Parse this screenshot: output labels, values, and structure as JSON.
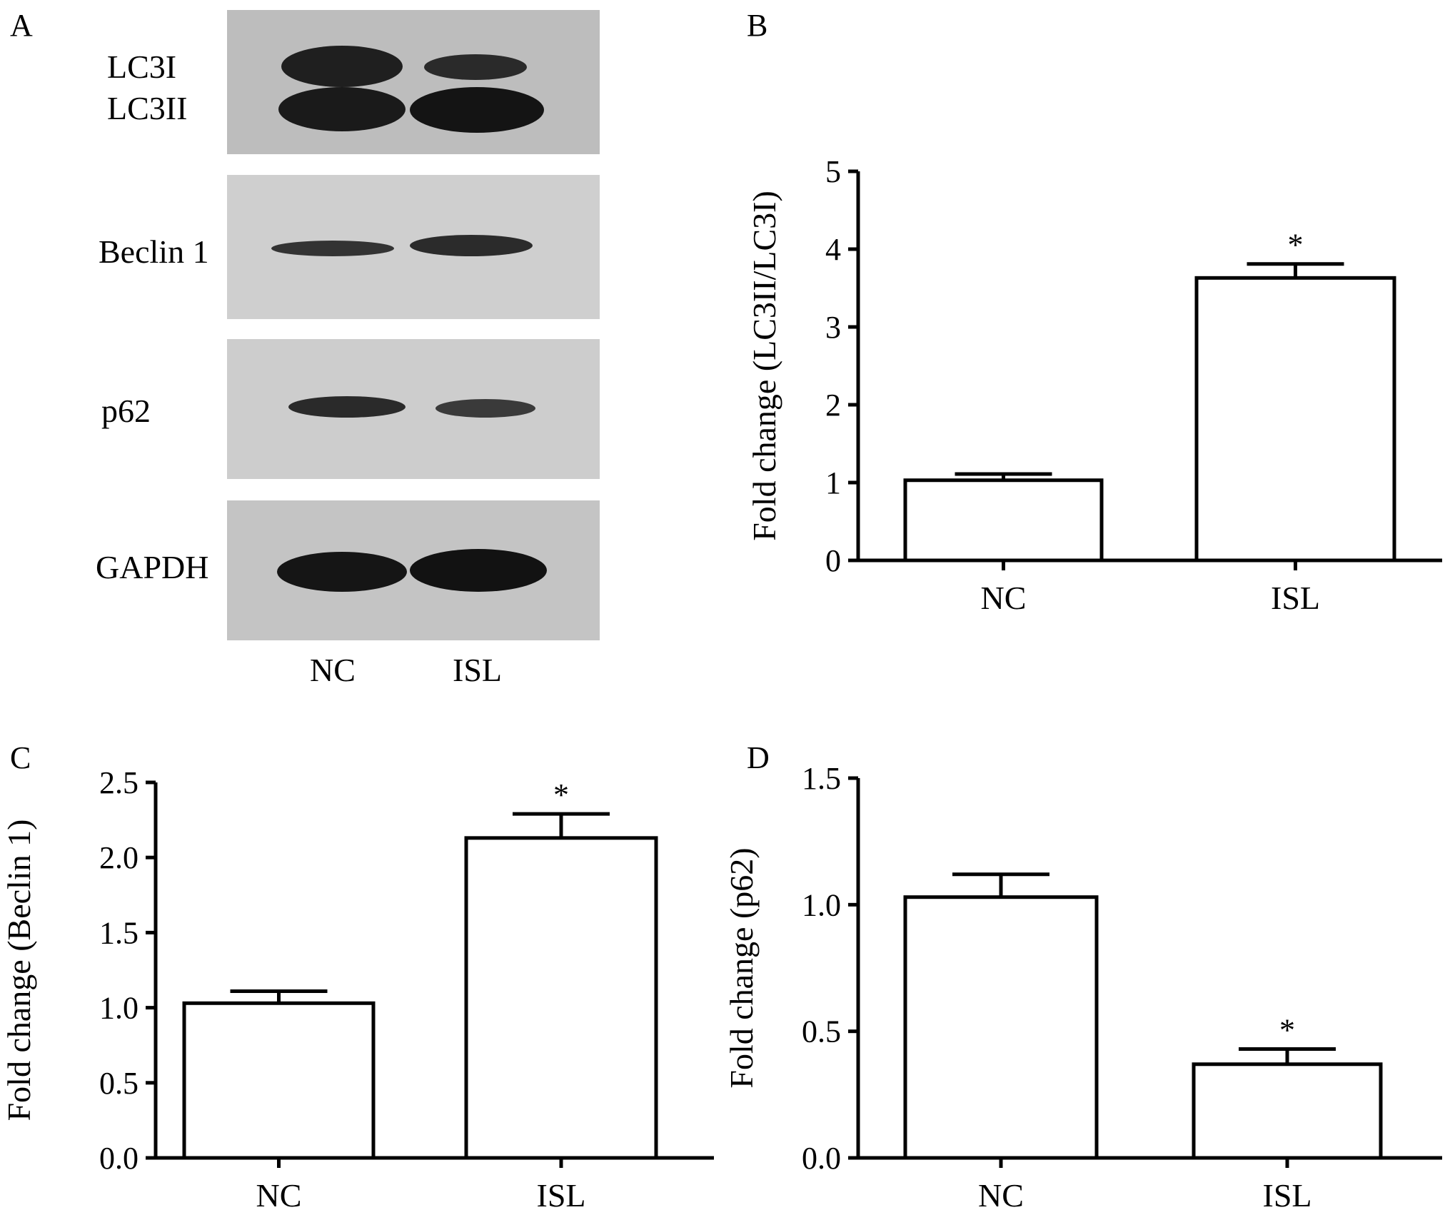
{
  "panels": {
    "a": {
      "letter": "A"
    },
    "b": {
      "letter": "B"
    },
    "c": {
      "letter": "C"
    },
    "d": {
      "letter": "D"
    }
  },
  "blot": {
    "labels": {
      "lc3i": "LC3I",
      "lc3ii": "LC3II",
      "beclin": "Beclin 1",
      "p62": "p62",
      "gapdh": "GAPDH"
    },
    "lanes": [
      "NC",
      "ISL"
    ]
  },
  "chart_data": [
    {
      "panel": "B",
      "type": "bar",
      "categories": [
        "NC",
        "ISL"
      ],
      "values": [
        1.03,
        3.63
      ],
      "errors": [
        0.08,
        0.18
      ],
      "significance": [
        "",
        "*"
      ],
      "ylabel": "Fold change (LC3II/LC3I)",
      "ylim": [
        0,
        5
      ],
      "yticks": [
        "0",
        "1",
        "2",
        "3",
        "4",
        "5"
      ],
      "ytick_values": [
        0,
        1,
        2,
        3,
        4,
        5
      ]
    },
    {
      "panel": "C",
      "type": "bar",
      "categories": [
        "NC",
        "ISL"
      ],
      "values": [
        1.03,
        2.13
      ],
      "errors": [
        0.08,
        0.16
      ],
      "significance": [
        "",
        "*"
      ],
      "ylabel": "Fold change (Beclin 1)",
      "ylim": [
        0,
        2.5
      ],
      "yticks": [
        "0.0",
        "0.5",
        "1.0",
        "1.5",
        "2.0",
        "2.5"
      ],
      "ytick_values": [
        0,
        0.5,
        1.0,
        1.5,
        2.0,
        2.5
      ]
    },
    {
      "panel": "D",
      "type": "bar",
      "categories": [
        "NC",
        "ISL"
      ],
      "values": [
        1.03,
        0.37
      ],
      "errors": [
        0.09,
        0.06
      ],
      "significance": [
        "",
        "*"
      ],
      "ylabel": "Fold change (p62)",
      "ylim": [
        0,
        1.5
      ],
      "yticks": [
        "0.0",
        "0.5",
        "1.0",
        "1.5"
      ],
      "ytick_values": [
        0,
        0.5,
        1.0,
        1.5
      ]
    }
  ]
}
